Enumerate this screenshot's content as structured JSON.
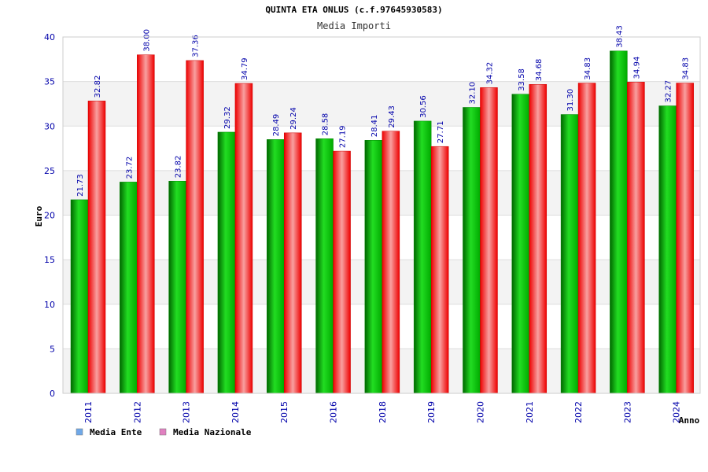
{
  "chart_data": {
    "type": "bar",
    "title": "QUINTA ETA ONLUS (c.f.97645930583)",
    "subtitle": "Media Importi",
    "xlabel": "Anno",
    "ylabel": "Euro",
    "ylim": [
      0,
      40
    ],
    "yticks": [
      0,
      5,
      10,
      15,
      20,
      25,
      30,
      35,
      40
    ],
    "grid": true,
    "legend_position": "bottom-left",
    "categories": [
      "2011",
      "2012",
      "2013",
      "2014",
      "2015",
      "2016",
      "2018",
      "2019",
      "2020",
      "2021",
      "2022",
      "2023",
      "2024"
    ],
    "series": [
      {
        "name": "Media Ente",
        "color": "#00b000",
        "legend_color": "#6fa8e8",
        "values": [
          21.73,
          23.72,
          23.82,
          29.32,
          28.49,
          28.58,
          28.41,
          30.56,
          32.1,
          33.58,
          31.3,
          38.43,
          32.27
        ],
        "labels": [
          "21.73",
          "23.72",
          "23.82",
          "29.32",
          "28.49",
          "28.58",
          "28.41",
          "30.56",
          "32.10",
          "33.58",
          "31.30",
          "38.43",
          "32.27"
        ]
      },
      {
        "name": "Media Nazionale",
        "color": "#ee1111",
        "legend_color": "#e080c0",
        "values": [
          32.82,
          38.0,
          37.36,
          34.79,
          29.24,
          27.19,
          29.43,
          27.71,
          34.32,
          34.68,
          34.83,
          34.94,
          34.83
        ],
        "labels": [
          "32.82",
          "38.00",
          "37.36",
          "34.79",
          "29.24",
          "27.19",
          "29.43",
          "27.71",
          "34.32",
          "34.68",
          "34.83",
          "34.94",
          "34.83"
        ]
      }
    ]
  }
}
